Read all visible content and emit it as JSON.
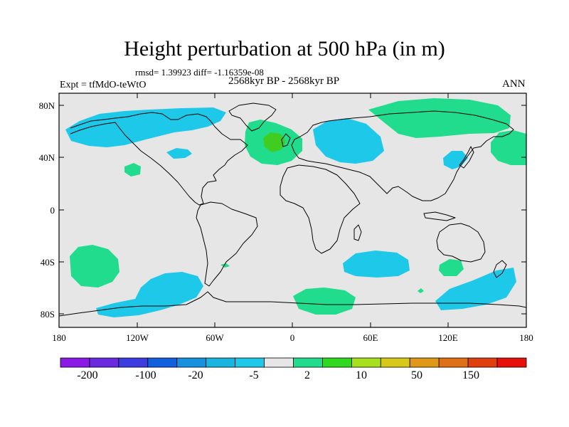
{
  "title": "Height perturbation at 500 hPa (in m)",
  "stats": "rmsd= 1.39923 diff= -1.16359e-08",
  "experiment": "Expt = tfMdO-teWtO",
  "period": "2568kyr BP - 2568kyr BP",
  "season": "ANN",
  "lat_labels": [
    "80N",
    "40N",
    "0",
    "40S",
    "80S"
  ],
  "lon_labels": [
    "180",
    "120W",
    "60W",
    "0",
    "60E",
    "120E",
    "180"
  ],
  "colorbar": {
    "labels": [
      "-200",
      "-100",
      "-20",
      "-5",
      "2",
      "10",
      "50",
      "150"
    ],
    "colors": [
      "#8a1be6",
      "#6a2ae0",
      "#3c3ce0",
      "#1060e0",
      "#1890e0",
      "#1ab4e0",
      "#1ec8e8",
      "#e6e6e6",
      "#20dc8c",
      "#30d820",
      "#a8e020",
      "#d8c81a",
      "#e09818",
      "#e07018",
      "#e0400e",
      "#e8100a"
    ]
  },
  "anomaly_colors": {
    "negative_small": "#1ec8e8",
    "positive_small": "#20dc8c",
    "positive_mid": "#40cc20",
    "background": "#e6e6e6"
  }
}
